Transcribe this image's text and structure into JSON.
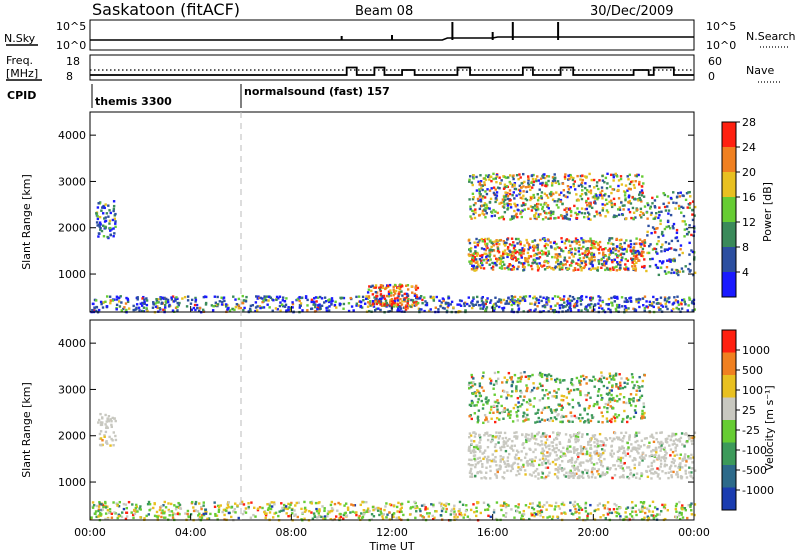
{
  "header": {
    "station": "Saskatoon (fitACF)",
    "beam": "Beam 08",
    "date": "30/Dec/2009"
  },
  "noise_panel": {
    "left_label": "N.Sky",
    "right_label": "N.Search",
    "left_ticks": [
      "10^5",
      "10^0"
    ],
    "right_ticks": [
      "10^5",
      "10^0"
    ]
  },
  "freq_panel": {
    "left_label_1": "Freq.",
    "left_label_2": "[MHz]",
    "right_label": "Nave",
    "left_ticks": [
      "18",
      "8"
    ],
    "right_ticks": [
      "60",
      "0"
    ]
  },
  "cpid": {
    "label": "CPID",
    "segments": [
      {
        "text": "themis 3300",
        "start_hour": 0
      },
      {
        "text": "normalsound (fast) 157",
        "start_hour": 6
      }
    ]
  },
  "power_panel": {
    "ylabel": "Slant Range [km]",
    "yticks": [
      "1000",
      "2000",
      "3000",
      "4000"
    ],
    "colorbar_label": "Power [dB]",
    "colorbar_ticks": [
      "4",
      "8",
      "12",
      "16",
      "20",
      "24",
      "28"
    ],
    "colorbar_colors": [
      "#1a1aff",
      "#2c4fa0",
      "#3a8a5a",
      "#66cc33",
      "#e8c020",
      "#f08020",
      "#ff2010"
    ]
  },
  "velocity_panel": {
    "ylabel": "Slant Range [km]",
    "yticks": [
      "1000",
      "2000",
      "3000",
      "4000"
    ],
    "colorbar_label": "Velocity [m s⁻¹]",
    "colorbar_ticks": [
      "1000",
      "500",
      "100",
      "25",
      "-25",
      "-100",
      "-500",
      "-1000"
    ],
    "colorbar_colors": [
      "#1a3cb0",
      "#2c6a8a",
      "#3c9a5a",
      "#66cc33",
      "#c8c8c0",
      "#e8c020",
      "#f08020",
      "#ff2010"
    ]
  },
  "xaxis": {
    "label": "Time UT",
    "ticks": [
      "00:00",
      "04:00",
      "08:00",
      "12:00",
      "16:00",
      "20:00",
      "00:00"
    ]
  },
  "chart_data": {
    "type": "heatmap",
    "x_range_hours": [
      0,
      24
    ],
    "y_range_km": [
      180,
      4500
    ],
    "dashed_marker_hour": 6,
    "freq_mhz_steps": [
      [
        0,
        10
      ],
      [
        10.2,
        13
      ],
      [
        10.6,
        10
      ],
      [
        11.3,
        13
      ],
      [
        11.7,
        10
      ],
      [
        12.4,
        12
      ],
      [
        12.9,
        10
      ],
      [
        14.6,
        13
      ],
      [
        15.1,
        10
      ],
      [
        17.2,
        13
      ],
      [
        17.6,
        10
      ],
      [
        18.7,
        13
      ],
      [
        19.2,
        10
      ],
      [
        21.6,
        12
      ],
      [
        22.2,
        10
      ],
      [
        22.4,
        13
      ],
      [
        23.2,
        10
      ],
      [
        24,
        10
      ]
    ]
  }
}
